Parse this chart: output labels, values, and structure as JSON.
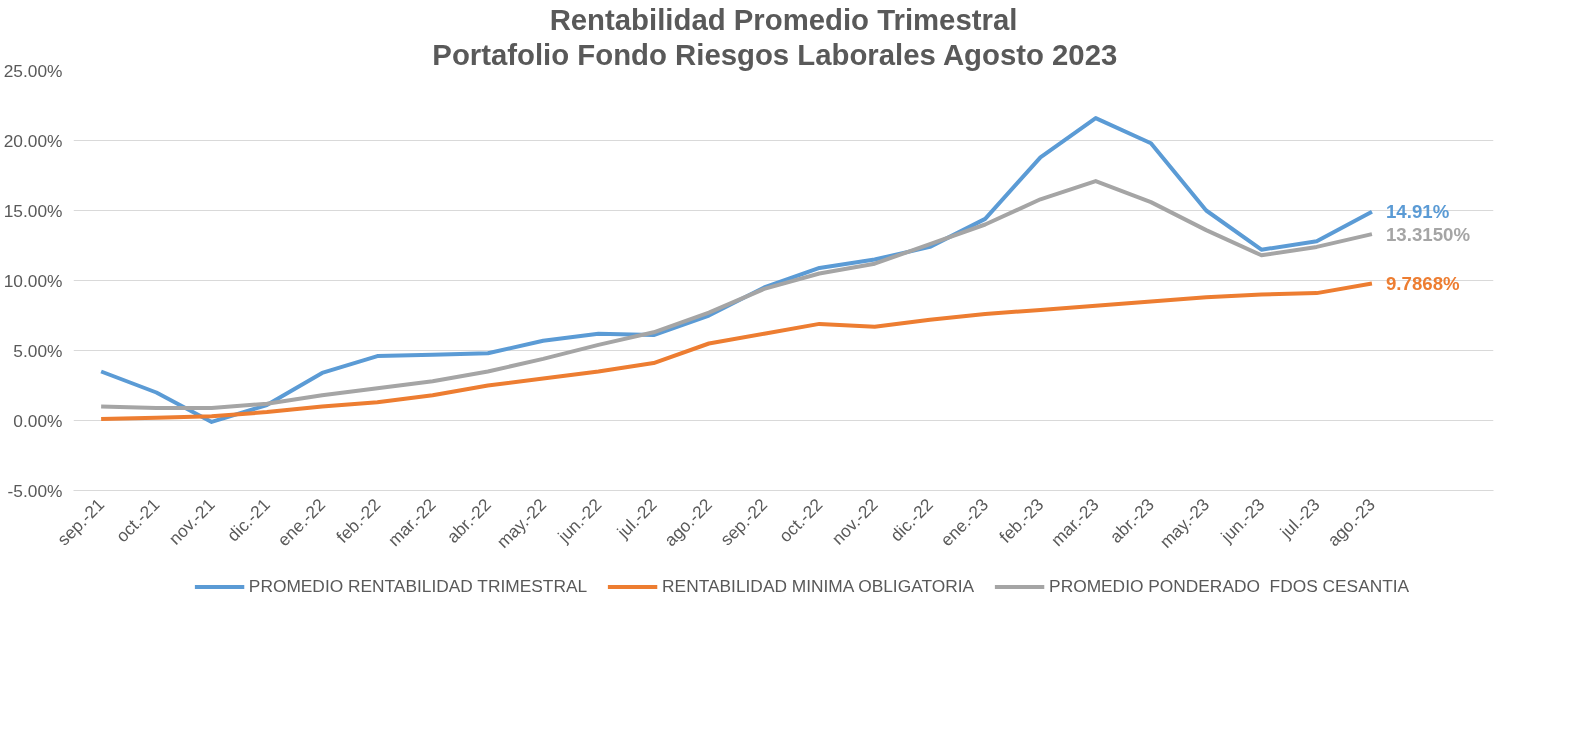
{
  "chart_data": {
    "type": "line",
    "title": "Rentabilidad Promedio Trimestral",
    "subtitle": "Portafolio Fondo Riesgos Laborales   Agosto 2023",
    "categories": [
      "sep.-21",
      "oct.-21",
      "nov.-21",
      "dic.-21",
      "ene.-22",
      "feb.-22",
      "mar.-22",
      "abr.-22",
      "may.-22",
      "jun.-22",
      "jul.-22",
      "ago.-22",
      "sep.-22",
      "oct.-22",
      "nov.-22",
      "dic.-22",
      "ene.-23",
      "feb.-23",
      "mar.-23",
      "abr.-23",
      "may.-23",
      "jun.-23",
      "jul.-23",
      "ago.-23"
    ],
    "series": [
      {
        "name": "PROMEDIO RENTABILIDAD TRIMESTRAL",
        "color": "#5b9bd5",
        "values": [
          3.5,
          2.0,
          -0.1,
          1.1,
          3.4,
          4.6,
          4.7,
          4.8,
          5.7,
          6.2,
          6.1,
          7.5,
          9.5,
          10.9,
          11.5,
          12.4,
          14.4,
          18.8,
          21.6,
          19.8,
          15.0,
          12.2,
          12.8,
          14.91
        ],
        "value_labels": [
          null,
          null,
          null,
          null,
          null,
          null,
          null,
          null,
          null,
          null,
          null,
          null,
          null,
          null,
          null,
          null,
          null,
          null,
          null,
          null,
          null,
          null,
          null,
          "14.91%"
        ]
      },
      {
        "name": "RENTABILIDAD MINIMA OBLIGATORIA",
        "color": "#ed7d31",
        "values": [
          0.1,
          0.2,
          0.3,
          0.6,
          1.0,
          1.3,
          1.8,
          2.5,
          3.0,
          3.5,
          4.1,
          5.5,
          6.2,
          6.9,
          6.7,
          7.2,
          7.6,
          7.9,
          8.2,
          8.5,
          8.8,
          9.0,
          9.1,
          9.7868
        ],
        "value_labels": [
          null,
          null,
          null,
          null,
          null,
          null,
          null,
          null,
          null,
          null,
          null,
          null,
          null,
          null,
          null,
          null,
          null,
          null,
          null,
          null,
          null,
          null,
          null,
          "9.7868%"
        ]
      },
      {
        "name": "PROMEDIO PONDERADO  FDOS CESANTIA",
        "color": "#a5a5a5",
        "values": [
          1.0,
          0.9,
          0.9,
          1.2,
          1.8,
          2.3,
          2.8,
          3.5,
          4.4,
          5.4,
          6.3,
          7.7,
          9.4,
          10.5,
          11.2,
          12.6,
          14.0,
          15.8,
          17.1,
          15.6,
          13.6,
          11.8,
          12.4,
          13.315
        ],
        "value_labels": [
          null,
          null,
          null,
          null,
          null,
          null,
          null,
          null,
          null,
          null,
          null,
          null,
          null,
          null,
          null,
          null,
          null,
          null,
          null,
          null,
          null,
          null,
          null,
          "13.3150%"
        ]
      }
    ],
    "ylim": [
      -5,
      25
    ],
    "yticks": [
      {
        "value": -5,
        "label": "-5.00%"
      },
      {
        "value": 0,
        "label": "0.00%"
      },
      {
        "value": 5,
        "label": "5.00%"
      },
      {
        "value": 10,
        "label": "10.00%"
      },
      {
        "value": 15,
        "label": "15.00%"
      },
      {
        "value": 20,
        "label": "20.00%"
      },
      {
        "value": 25,
        "label": "25.00%"
      }
    ],
    "grid": "y",
    "legend": "bottom",
    "marker": "none",
    "line_style": "solid"
  }
}
